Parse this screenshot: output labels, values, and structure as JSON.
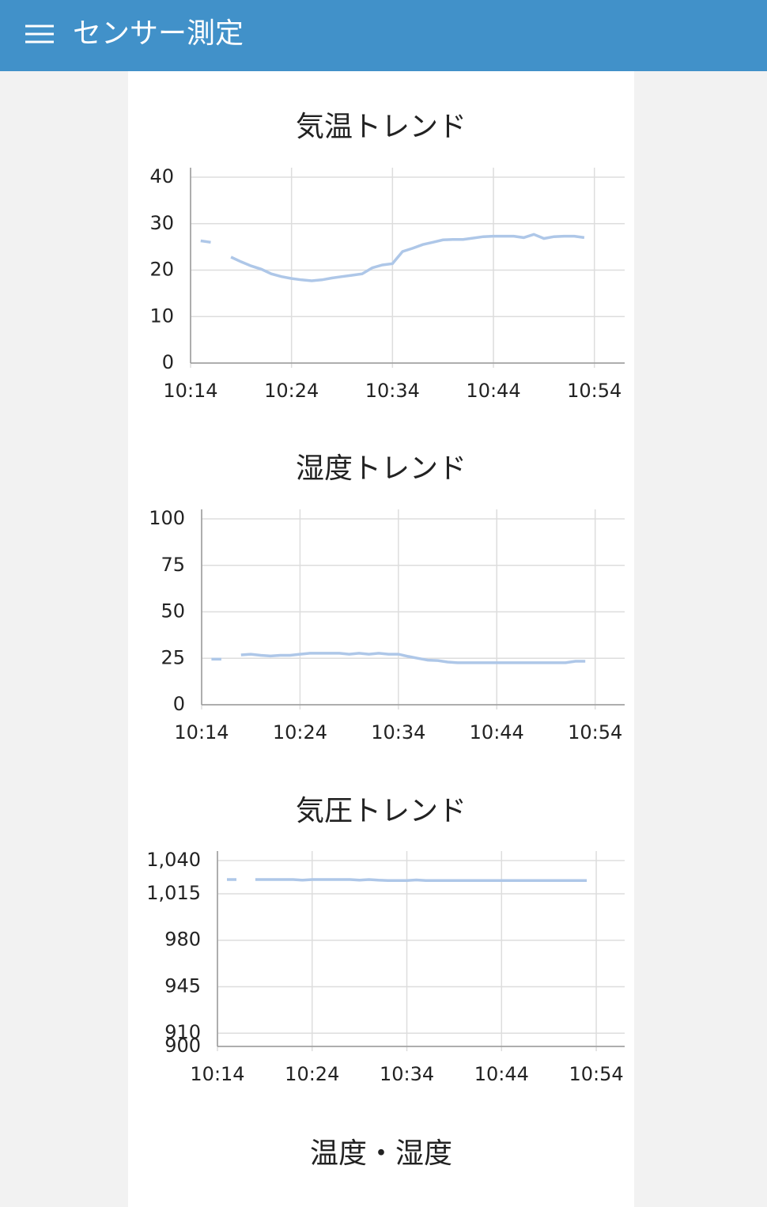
{
  "header": {
    "title": "センサー測定"
  },
  "chart_data": [
    {
      "type": "line",
      "title": "気温トレンド",
      "x": [
        "10:15",
        "10:16",
        "10:17",
        "10:18",
        "10:19",
        "10:20",
        "10:21",
        "10:22",
        "10:23",
        "10:24",
        "10:25",
        "10:26",
        "10:27",
        "10:28",
        "10:29",
        "10:30",
        "10:31",
        "10:32",
        "10:33",
        "10:34",
        "10:35",
        "10:36",
        "10:37",
        "10:38",
        "10:39",
        "10:40",
        "10:41",
        "10:42",
        "10:43",
        "10:44",
        "10:45",
        "10:46",
        "10:47",
        "10:48",
        "10:49",
        "10:50",
        "10:51",
        "10:52",
        "10:53"
      ],
      "series": [
        {
          "color": "#aec7e8",
          "values": [
            26.3,
            26,
            null,
            22.8,
            21.8,
            20.9,
            20.2,
            19.2,
            18.6,
            18.2,
            17.9,
            17.7,
            17.9,
            18.3,
            18.6,
            18.9,
            19.2,
            20.5,
            21.1,
            21.4,
            24,
            24.7,
            25.5,
            26,
            26.5,
            26.6,
            26.6,
            26.9,
            27.2,
            27.3,
            27.3,
            27.3,
            27,
            27.7,
            26.8,
            27.2,
            27.3,
            27.3,
            27
          ]
        }
      ],
      "xlim": [
        "10:14",
        "10:57"
      ],
      "xticks": [
        "10:14",
        "10:24",
        "10:34",
        "10:44",
        "10:54"
      ],
      "ylim": [
        0,
        40
      ],
      "yticks": [
        0,
        10,
        20,
        30,
        40
      ],
      "grid": true
    },
    {
      "type": "line",
      "title": "湿度トレンド",
      "x": [
        "10:15",
        "10:16",
        "10:17",
        "10:18",
        "10:19",
        "10:20",
        "10:21",
        "10:22",
        "10:23",
        "10:24",
        "10:25",
        "10:26",
        "10:27",
        "10:28",
        "10:29",
        "10:30",
        "10:31",
        "10:32",
        "10:33",
        "10:34",
        "10:35",
        "10:36",
        "10:37",
        "10:38",
        "10:39",
        "10:40",
        "10:41",
        "10:42",
        "10:43",
        "10:44",
        "10:45",
        "10:46",
        "10:47",
        "10:48",
        "10:49",
        "10:50",
        "10:51",
        "10:52",
        "10:53"
      ],
      "series": [
        {
          "color": "#aec7e8",
          "values": [
            24.5,
            24.5,
            null,
            26.8,
            27.2,
            26.6,
            26.2,
            26.6,
            26.6,
            27.2,
            27.7,
            27.7,
            27.7,
            27.7,
            27.2,
            27.7,
            27.2,
            27.7,
            27.2,
            27.2,
            26,
            25,
            24,
            23.8,
            23,
            22.6,
            22.6,
            22.6,
            22.6,
            22.6,
            22.6,
            22.6,
            22.6,
            22.6,
            22.6,
            22.6,
            22.6,
            23.4,
            23.4
          ]
        }
      ],
      "xlim": [
        "10:14",
        "10:57"
      ],
      "xticks": [
        "10:14",
        "10:24",
        "10:34",
        "10:44",
        "10:54"
      ],
      "ylim": [
        0,
        100
      ],
      "yticks": [
        0,
        25,
        50,
        75,
        100
      ],
      "grid": true
    },
    {
      "type": "line",
      "title": "気圧トレンド",
      "x": [
        "10:15",
        "10:16",
        "10:17",
        "10:18",
        "10:19",
        "10:20",
        "10:21",
        "10:22",
        "10:23",
        "10:24",
        "10:25",
        "10:26",
        "10:27",
        "10:28",
        "10:29",
        "10:30",
        "10:31",
        "10:32",
        "10:33",
        "10:34",
        "10:35",
        "10:36",
        "10:37",
        "10:38",
        "10:39",
        "10:40",
        "10:41",
        "10:42",
        "10:43",
        "10:44",
        "10:45",
        "10:46",
        "10:47",
        "10:48",
        "10:49",
        "10:50",
        "10:51",
        "10:52",
        "10:53"
      ],
      "series": [
        {
          "color": "#aec7e8",
          "values": [
            1025.7,
            1025.7,
            null,
            1025.7,
            1025.7,
            1025.7,
            1025.7,
            1025.7,
            1025.2,
            1025.7,
            1025.7,
            1025.7,
            1025.7,
            1025.7,
            1025.2,
            1025.7,
            1025.2,
            1024.9,
            1024.9,
            1024.9,
            1025.4,
            1024.9,
            1024.9,
            1024.9,
            1024.9,
            1024.9,
            1024.9,
            1024.9,
            1024.9,
            1024.9,
            1024.9,
            1024.9,
            1024.9,
            1024.9,
            1024.9,
            1024.9,
            1024.9,
            1024.9,
            1024.9
          ]
        }
      ],
      "xlim": [
        "10:14",
        "10:57"
      ],
      "xticks": [
        "10:14",
        "10:24",
        "10:34",
        "10:44",
        "10:54"
      ],
      "ylim": [
        900,
        1040
      ],
      "yticks": [
        900,
        910,
        945,
        980,
        {
          "value": 1015,
          "label": "1,015"
        },
        {
          "value": 1040,
          "label": "1,040"
        }
      ],
      "grid": true
    }
  ],
  "section": {
    "title": "温度・湿度"
  }
}
